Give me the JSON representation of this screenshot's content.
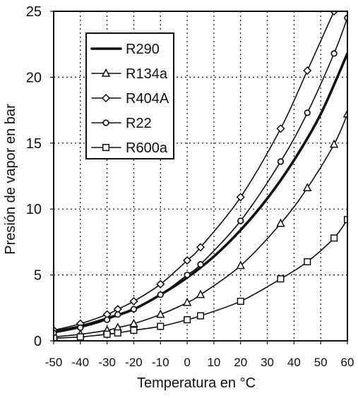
{
  "chart_data": {
    "type": "line",
    "title": "",
    "xlabel": "Temperatura en °C",
    "ylabel": "Presión de vapor en bar",
    "xlim": [
      -50,
      60
    ],
    "ylim": [
      0,
      25
    ],
    "xticks": [
      -50,
      -40,
      -30,
      -20,
      -10,
      0,
      10,
      20,
      30,
      40,
      50,
      60
    ],
    "yticks": [
      0,
      5,
      10,
      15,
      20,
      25
    ],
    "xtick_labels": [
      "-50",
      "-40",
      "-30",
      "-20",
      "-10",
      "0",
      "10",
      "20",
      "30",
      "40",
      "50",
      "60"
    ],
    "ytick_labels": [
      "0",
      "5",
      "10",
      "15",
      "20",
      "25"
    ],
    "grid": true,
    "legend_position": "top-left",
    "series": [
      {
        "name": "R290",
        "marker": "none",
        "stroke_width": 3.6,
        "x": [
          -50,
          -40,
          -30,
          -20,
          -10,
          0,
          10,
          20,
          30,
          40,
          50,
          60
        ],
        "y": [
          0.7,
          1.1,
          1.7,
          2.4,
          3.5,
          4.8,
          6.4,
          8.4,
          10.8,
          13.7,
          17.2,
          21.8
        ]
      },
      {
        "name": "R134a",
        "marker": "triangle",
        "stroke_width": 1.6,
        "x": [
          -50,
          -40,
          -30,
          -26,
          -20,
          -10,
          0,
          5,
          20,
          35,
          45,
          55,
          60
        ],
        "y": [
          0.3,
          0.5,
          0.8,
          1.0,
          1.3,
          2.0,
          2.9,
          3.5,
          5.7,
          8.9,
          11.6,
          14.9,
          17.2
        ]
      },
      {
        "name": "R404A",
        "marker": "diamond",
        "stroke_width": 1.6,
        "x": [
          -50,
          -40,
          -30,
          -26,
          -20,
          -10,
          0,
          5,
          20,
          35,
          45,
          55
        ],
        "y": [
          0.8,
          1.3,
          2.0,
          2.4,
          3.0,
          4.3,
          6.1,
          7.1,
          10.9,
          16.1,
          20.5,
          25.0
        ]
      },
      {
        "name": "R22",
        "marker": "circle",
        "stroke_width": 1.6,
        "x": [
          -50,
          -40,
          -30,
          -26,
          -20,
          -10,
          0,
          5,
          20,
          35,
          45,
          55,
          60
        ],
        "y": [
          0.6,
          1.0,
          1.6,
          2.0,
          2.4,
          3.5,
          5.0,
          5.8,
          9.1,
          13.6,
          17.3,
          21.8,
          24.5
        ]
      },
      {
        "name": "R600a",
        "marker": "square",
        "stroke_width": 1.6,
        "x": [
          -50,
          -40,
          -30,
          -26,
          -20,
          -10,
          0,
          5,
          20,
          35,
          45,
          55,
          60
        ],
        "y": [
          0.2,
          0.3,
          0.5,
          0.6,
          0.8,
          1.1,
          1.6,
          1.9,
          3.0,
          4.7,
          6.0,
          7.8,
          9.2
        ]
      }
    ]
  }
}
